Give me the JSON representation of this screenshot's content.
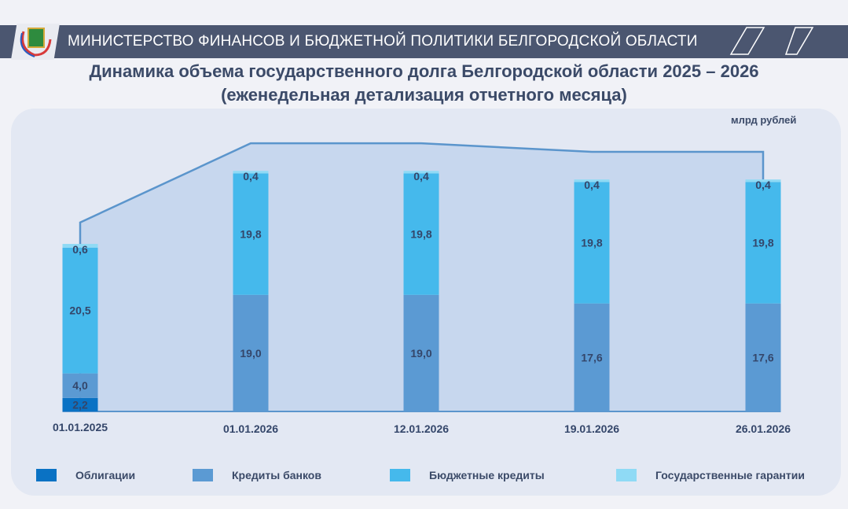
{
  "header": {
    "org": "МИНИСТЕРСТВО ФИНАНСОВ И БЮДЖЕТНОЙ ПОЛИТИКИ БЕЛГОРОДСКОЙ ОБЛАСТИ"
  },
  "title": {
    "line1": "Динамика объема государственного долга Белгородской области 2025 – 2026",
    "line2": "(еженедельная детализация отчетного месяца)"
  },
  "chart_data": {
    "type": "bar",
    "stacked": true,
    "unit": "млрд рублей",
    "categories": [
      "01.01.2025",
      "01.01.2026",
      "12.01.2026",
      "19.01.2026",
      "26.01.2026"
    ],
    "series": [
      {
        "name": "Облигации",
        "color": "#0a72c4",
        "values": [
          2.2,
          0,
          0,
          0,
          0
        ]
      },
      {
        "name": "Кредиты банков",
        "color": "#5b9ad3",
        "values": [
          4.0,
          19.0,
          19.0,
          17.6,
          17.6
        ]
      },
      {
        "name": "Бюджетные кредиты",
        "color": "#45b9ec",
        "values": [
          20.5,
          19.8,
          19.8,
          19.8,
          19.8
        ]
      },
      {
        "name": "Государственные гарантии",
        "color": "#8fdaf5",
        "values": [
          0.6,
          0.4,
          0.4,
          0.4,
          0.4
        ]
      }
    ],
    "legend": "bottom"
  }
}
